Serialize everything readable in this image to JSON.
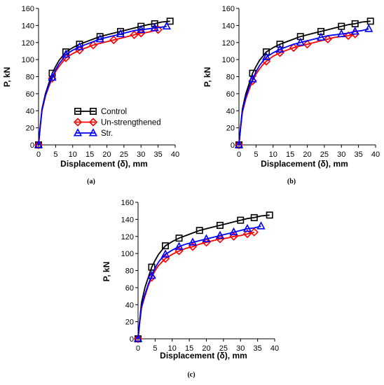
{
  "chart_data": [
    {
      "type": "line",
      "panel_label": "(a)",
      "xlabel": "Displacement (δ), mm",
      "ylabel": "P, kN",
      "xlim": [
        0,
        40
      ],
      "ylim": [
        0,
        160
      ],
      "xticks": [
        "0",
        "5",
        "10",
        "15",
        "20",
        "25",
        "30",
        "35",
        "40"
      ],
      "yticks": [
        "0",
        "20",
        "40",
        "60",
        "80",
        "100",
        "120",
        "140",
        "160"
      ],
      "grid": false,
      "legend": "bottom-left",
      "series": [
        {
          "name": "Control",
          "color": "#000000",
          "marker": "square",
          "x": [
            0,
            0.5,
            1,
            2,
            3,
            4,
            5,
            6,
            7,
            8,
            10,
            12,
            14,
            16,
            18,
            20,
            22,
            24,
            26,
            28,
            30,
            32,
            34,
            36,
            38.5
          ],
          "y": [
            0,
            22,
            42,
            60,
            72,
            84,
            92,
            99,
            104,
            109,
            114,
            118,
            121,
            124,
            127,
            129,
            131,
            133,
            135,
            137,
            139,
            141,
            142,
            144,
            145
          ],
          "marker_idx": [
            0,
            5,
            9,
            11,
            14,
            17,
            20,
            22,
            24
          ]
        },
        {
          "name": "Un-strengthened",
          "color": "#ff0000",
          "marker": "diamond",
          "x": [
            0,
            0.5,
            1,
            2,
            3,
            4,
            5,
            6,
            7,
            8,
            10,
            12,
            14,
            16,
            18,
            20,
            22,
            24,
            26,
            28,
            30,
            32,
            34,
            35
          ],
          "y": [
            0,
            21,
            40,
            57,
            68,
            78,
            86,
            92,
            97,
            102,
            107,
            111,
            114,
            117,
            119,
            121,
            123,
            125,
            127,
            129,
            131,
            132,
            134,
            135
          ],
          "marker_idx": [
            0,
            5,
            9,
            11,
            13,
            16,
            19,
            20,
            23
          ]
        },
        {
          "name": "Str.",
          "color": "#0000ff",
          "marker": "triangle",
          "x": [
            0,
            0.5,
            1,
            2,
            3,
            4,
            5,
            6,
            7,
            8,
            10,
            12,
            14,
            16,
            18,
            20,
            22,
            24,
            26,
            28,
            30,
            32,
            34,
            36,
            37.5
          ],
          "y": [
            0,
            21,
            41,
            58,
            70,
            79,
            88,
            95,
            100,
            106,
            111,
            115,
            118,
            121,
            124,
            126,
            128,
            130,
            132,
            134,
            135,
            136,
            137,
            138,
            139
          ],
          "marker_idx": [
            0,
            5,
            9,
            11,
            14,
            17,
            20,
            22,
            24
          ]
        }
      ]
    },
    {
      "type": "line",
      "panel_label": "(b)",
      "xlabel": "Displacement (δ), mm",
      "ylabel": "P, kN",
      "xlim": [
        0,
        40
      ],
      "ylim": [
        0,
        160
      ],
      "xticks": [
        "0",
        "5",
        "10",
        "15",
        "20",
        "25",
        "30",
        "35",
        "40"
      ],
      "yticks": [
        "0",
        "20",
        "40",
        "60",
        "80",
        "100",
        "120",
        "140",
        "160"
      ],
      "grid": false,
      "series": [
        {
          "name": "Control",
          "color": "#000000",
          "marker": "square",
          "x": [
            0,
            0.5,
            1,
            2,
            3,
            4,
            5,
            6,
            7,
            8,
            10,
            12,
            14,
            16,
            18,
            20,
            22,
            24,
            26,
            28,
            30,
            32,
            34,
            36,
            38.5
          ],
          "y": [
            0,
            22,
            42,
            60,
            72,
            84,
            92,
            99,
            104,
            109,
            114,
            118,
            121,
            124,
            127,
            129,
            131,
            133,
            135,
            137,
            139,
            141,
            142,
            144,
            145
          ],
          "marker_idx": [
            0,
            5,
            9,
            11,
            14,
            17,
            20,
            22,
            24
          ]
        },
        {
          "name": "Un-strengthened",
          "color": "#ff0000",
          "marker": "diamond",
          "x": [
            0,
            0.5,
            1,
            2,
            3,
            4,
            5,
            6,
            7,
            8,
            10,
            12,
            14,
            16,
            18,
            20,
            22,
            24,
            26,
            28,
            30,
            32,
            34
          ],
          "y": [
            0,
            20,
            38,
            54,
            65,
            75,
            83,
            89,
            94,
            98,
            104,
            108,
            111,
            114,
            116,
            118,
            120,
            122,
            124,
            126,
            127,
            128,
            130
          ],
          "marker_idx": [
            0,
            5,
            9,
            11,
            13,
            15,
            18,
            21,
            22
          ]
        },
        {
          "name": "Str.",
          "color": "#0000ff",
          "marker": "triangle",
          "x": [
            0,
            0.5,
            1,
            2,
            3,
            4,
            5,
            6,
            7,
            8,
            10,
            12,
            14,
            16,
            18,
            20,
            22,
            24,
            26,
            28,
            30,
            32,
            34,
            36,
            38
          ],
          "y": [
            0,
            21,
            40,
            56,
            68,
            77,
            86,
            93,
            98,
            103,
            108,
            112,
            115,
            118,
            120,
            122,
            124,
            126,
            128,
            129,
            130,
            131,
            133,
            134,
            136
          ],
          "marker_idx": [
            0,
            5,
            9,
            11,
            14,
            17,
            20,
            22,
            24
          ]
        }
      ]
    },
    {
      "type": "line",
      "panel_label": "(c)",
      "xlabel": "Displacement (δ), mm",
      "ylabel": "P, kN",
      "xlim": [
        0,
        40
      ],
      "ylim": [
        0,
        160
      ],
      "xticks": [
        "0",
        "5",
        "10",
        "15",
        "20",
        "25",
        "30",
        "35",
        "40"
      ],
      "yticks": [
        "0",
        "20",
        "40",
        "60",
        "80",
        "100",
        "120",
        "140",
        "160"
      ],
      "grid": false,
      "series": [
        {
          "name": "Control",
          "color": "#000000",
          "marker": "square",
          "x": [
            0,
            0.5,
            1,
            2,
            3,
            4,
            5,
            6,
            7,
            8,
            10,
            12,
            14,
            16,
            18,
            20,
            22,
            24,
            26,
            28,
            30,
            32,
            34,
            36,
            38.5
          ],
          "y": [
            0,
            22,
            42,
            60,
            72,
            84,
            92,
            99,
            104,
            109,
            114,
            118,
            121,
            124,
            127,
            129,
            131,
            133,
            135,
            137,
            139,
            141,
            142,
            144,
            145
          ],
          "marker_idx": [
            0,
            5,
            9,
            11,
            14,
            17,
            20,
            22,
            24
          ]
        },
        {
          "name": "Un-strengthened",
          "color": "#ff0000",
          "marker": "diamond",
          "x": [
            0,
            0.5,
            1,
            2,
            3,
            4,
            5,
            6,
            7,
            8,
            10,
            12,
            14,
            16,
            18,
            20,
            22,
            24,
            26,
            28,
            30,
            32,
            34
          ],
          "y": [
            0,
            19,
            36,
            50,
            62,
            72,
            80,
            86,
            90,
            94,
            99,
            103,
            106,
            108,
            111,
            113,
            115,
            117,
            118,
            120,
            121,
            123,
            125
          ],
          "marker_idx": [
            0,
            5,
            9,
            11,
            13,
            15,
            17,
            19,
            21,
            22
          ]
        },
        {
          "name": "Str.",
          "color": "#0000ff",
          "marker": "triangle",
          "x": [
            0,
            0.5,
            1,
            2,
            3,
            4,
            5,
            6,
            7,
            8,
            10,
            12,
            14,
            16,
            18,
            20,
            22,
            24,
            26,
            28,
            30,
            32,
            34,
            36
          ],
          "y": [
            0,
            20,
            38,
            52,
            64,
            74,
            83,
            90,
            95,
            99,
            104,
            108,
            111,
            113,
            115,
            117,
            119,
            121,
            123,
            125,
            127,
            129,
            130,
            132
          ],
          "marker_idx": [
            0,
            5,
            9,
            11,
            13,
            15,
            17,
            19,
            21,
            23
          ]
        }
      ]
    }
  ]
}
